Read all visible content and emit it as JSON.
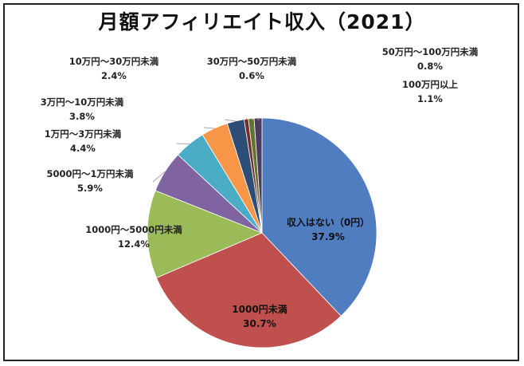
{
  "chart_data": {
    "type": "pie",
    "title": "月額アフィリエイト収入（2021）",
    "unit": "%",
    "colors": {
      "収入はない（0円）": "#4f7dc0",
      "1000円未満": "#c0504d",
      "1000円～5000円未満": "#9bbb59",
      "5000円～1万円未満": "#8064a2",
      "1万円～3万円未満": "#4bacc6",
      "3万円～10万円未満": "#f79646",
      "10万円～30万円未満": "#2c4d75",
      "30万円～50万円未満": "#772c2a",
      "50万円～100万円未満": "#5f7530",
      "100万円以上": "#4d3b62"
    },
    "slices": [
      {
        "label": "収入はない（0円）",
        "value": 37.9,
        "value_text": "37.9%"
      },
      {
        "label": "1000円未満",
        "value": 30.7,
        "value_text": "30.7%"
      },
      {
        "label": "1000円～5000円未満",
        "value": 12.4,
        "value_text": "12.4%"
      },
      {
        "label": "5000円～1万円未満",
        "value": 5.9,
        "value_text": "5.9%"
      },
      {
        "label": "1万円～3万円未満",
        "value": 4.4,
        "value_text": "4.4%"
      },
      {
        "label": "3万円～10万円未満",
        "value": 3.8,
        "value_text": "3.8%"
      },
      {
        "label": "10万円～30万円未満",
        "value": 2.4,
        "value_text": "2.4%"
      },
      {
        "label": "30万円～50万円未満",
        "value": 0.6,
        "value_text": "0.6%"
      },
      {
        "label": "50万円～100万円未満",
        "value": 0.8,
        "value_text": "0.8%"
      },
      {
        "label": "100万円以上",
        "value": 1.1,
        "value_text": "1.1%"
      }
    ]
  }
}
